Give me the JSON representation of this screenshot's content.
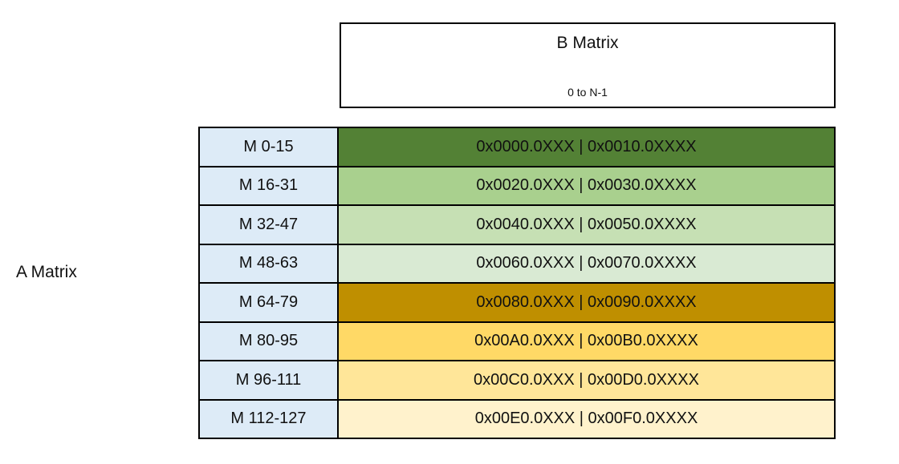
{
  "a_matrix": {
    "label": "A Matrix"
  },
  "b_matrix_box": {
    "title": "B Matrix",
    "subtitle": "0 to N-1"
  },
  "table": {
    "label_bg": "#DDEBF7",
    "border_color": "#000000",
    "rows": [
      {
        "label": "M 0-15",
        "value": "0x0000.0XXX | 0x0010.0XXXX",
        "bg": "#538135"
      },
      {
        "label": "M 16-31",
        "value": "0x0020.0XXX | 0x0030.0XXXX",
        "bg": "#A9D08E"
      },
      {
        "label": "M 32-47",
        "value": "0x0040.0XXX | 0x0050.0XXXX",
        "bg": "#C6E0B4"
      },
      {
        "label": "M 48-63",
        "value": "0x0060.0XXX | 0x0070.0XXXX",
        "bg": "#D9EAD3"
      },
      {
        "label": "M 64-79",
        "value": "0x0080.0XXX | 0x0090.0XXXX",
        "bg": "#BF8F00"
      },
      {
        "label": "M 80-95",
        "value": "0x00A0.0XXX | 0x00B0.0XXXX",
        "bg": "#FFD966"
      },
      {
        "label": "M 96-111",
        "value": "0x00C0.0XXX | 0x00D0.0XXXX",
        "bg": "#FFE699"
      },
      {
        "label": "M 112-127",
        "value": "0x00E0.0XXX | 0x00F0.0XXXX",
        "bg": "#FFF2CC"
      }
    ]
  }
}
